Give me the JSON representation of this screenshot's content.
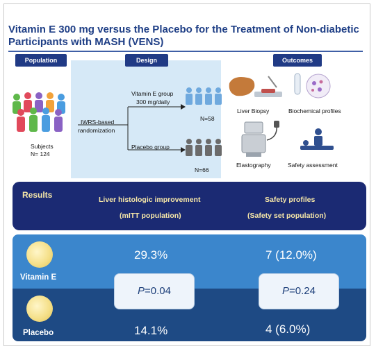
{
  "title": "Vitamin E 300 mg versus the Placebo for the Treatment of Non-diabetic Participants with MASH (VENS)",
  "tags": {
    "population": "Population",
    "design": "Design",
    "outcomes": "Outcomes"
  },
  "population": {
    "subjects_label": "Subjects",
    "n_label": "N= 124"
  },
  "design": {
    "randomization": [
      "IWRS-based",
      "randomization"
    ],
    "vitamin_group": "Vitamin E group",
    "vitamin_dose": "300 mg/daily",
    "vitamin_n": "N=58",
    "placebo_group": "Placebo group",
    "placebo_n": "N=66"
  },
  "outcomes": {
    "liver_biopsy": "Liver Biopsy",
    "biochemical": "Biochemical profiles",
    "elastography": "Elastography",
    "safety": "Safety assessment"
  },
  "results": {
    "label": "Results",
    "col1_title": "Liver histologic improvement",
    "col1_sub": "(mITT population)",
    "col2_title": "Safety profiles",
    "col2_sub": "(Safety set population)",
    "vitamin_label": "Vitamin E",
    "placebo_label": "Placebo",
    "vitamin_histo": "29.3%",
    "vitamin_safety": "7 (12.0%)",
    "placebo_histo": "14.1%",
    "placebo_safety": "4 (6.0%)",
    "p_histo": "0.04",
    "p_safety": "0.24",
    "p_symbol": "P"
  },
  "colors": {
    "navy": "#1b2a73",
    "blue": "#3b86cc",
    "dark_blue": "#1e4a84",
    "design_bg": "#d6e9f7"
  }
}
